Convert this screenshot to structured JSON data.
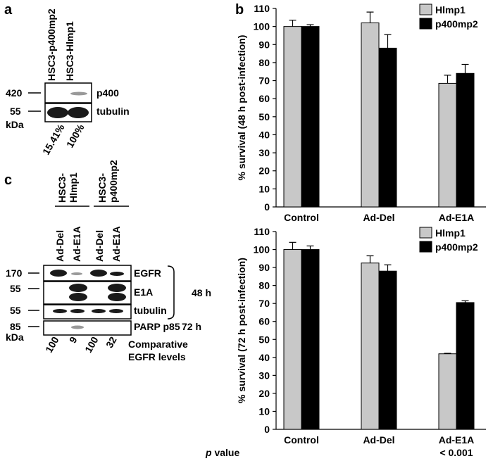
{
  "panels": {
    "a": {
      "label": "a",
      "columns": [
        "HSC3-p400mp2",
        "HSC3-Hlmp1"
      ],
      "rows": [
        {
          "marker": "420",
          "protein": "p400"
        },
        {
          "marker": "55",
          "protein": "tubulin"
        }
      ],
      "unit": "kDa",
      "levels": [
        "15.41%",
        "100%"
      ]
    },
    "c": {
      "label": "c",
      "groups": [
        [
          "HSC3-",
          "Hlmp1"
        ],
        [
          "HSC3-",
          "p400mp2"
        ]
      ],
      "lanes": [
        "Ad-Del",
        "Ad-E1A",
        "Ad-Del",
        "Ad-E1A"
      ],
      "rows": [
        {
          "marker": "170",
          "protein": "EGFR"
        },
        {
          "marker": "55",
          "protein": "E1A"
        },
        {
          "marker": "55",
          "protein": "tubulin"
        },
        {
          "marker": "85",
          "protein": "PARP p85"
        }
      ],
      "time_48": "48 h",
      "time_72": "72 h",
      "unit": "kDa",
      "levels": [
        "100",
        "9",
        "100",
        "32"
      ],
      "levels_caption": [
        "Comparative",
        "EGFR levels"
      ]
    },
    "b": {
      "label": "b"
    }
  },
  "chart_data": [
    {
      "type": "bar",
      "y_label": "% survival (48 h post-infection)",
      "categories": [
        "Control",
        "Ad-Del",
        "Ad-E1A"
      ],
      "series": [
        {
          "name": "Hlmp1",
          "color": "#c8c8c8",
          "values": [
            100,
            102,
            68.5
          ],
          "errors": [
            3.5,
            6,
            4.5
          ]
        },
        {
          "name": "p400mp2",
          "color": "#000000",
          "values": [
            100,
            88,
            74
          ],
          "errors": [
            1,
            7.5,
            5
          ]
        }
      ],
      "ylim": [
        0,
        110
      ],
      "yticks": [
        0,
        10,
        20,
        30,
        40,
        50,
        60,
        70,
        80,
        90,
        100,
        110
      ],
      "grid": false,
      "legend": "top-right"
    },
    {
      "type": "bar",
      "y_label": "% survival (72 h post-infection)",
      "categories": [
        "Control",
        "Ad-Del",
        "Ad-E1A"
      ],
      "series": [
        {
          "name": "Hlmp1",
          "color": "#c8c8c8",
          "values": [
            100,
            92.5,
            42
          ],
          "errors": [
            4,
            4,
            0.3
          ]
        },
        {
          "name": "p400mp2",
          "color": "#000000",
          "values": [
            100,
            88,
            70.5
          ],
          "errors": [
            2,
            3.5,
            1
          ]
        }
      ],
      "ylim": [
        0,
        110
      ],
      "yticks": [
        0,
        10,
        20,
        30,
        40,
        50,
        60,
        70,
        80,
        90,
        100,
        110
      ],
      "grid": false,
      "legend": "top-right",
      "pvalue_symbol": "p",
      "pvalue_word": "value",
      "pvalue": "< 0.001"
    }
  ]
}
